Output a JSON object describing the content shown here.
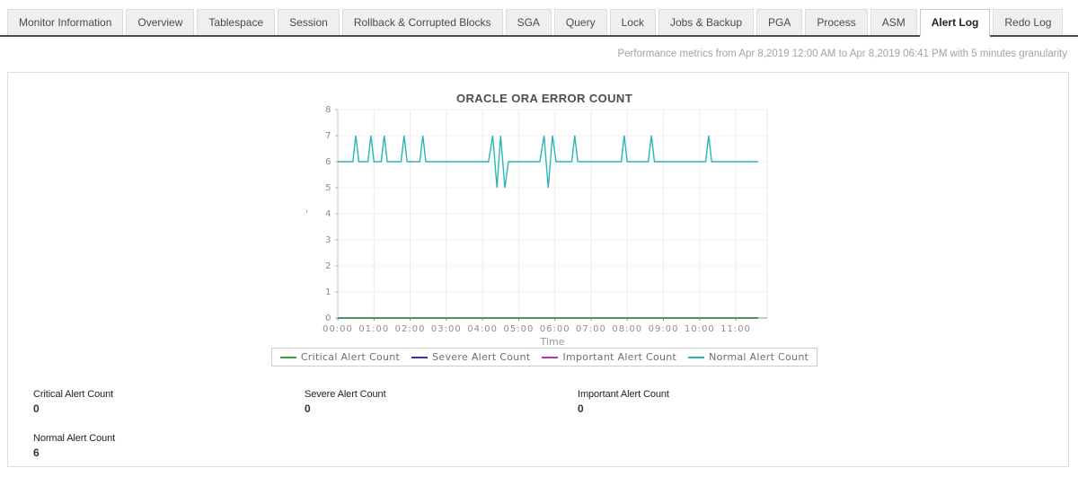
{
  "tabs": {
    "active": "Alert Log",
    "items": [
      {
        "label": "Monitor Information"
      },
      {
        "label": "Overview"
      },
      {
        "label": "Tablespace"
      },
      {
        "label": "Session"
      },
      {
        "label": "Rollback & Corrupted Blocks"
      },
      {
        "label": "SGA"
      },
      {
        "label": "Query"
      },
      {
        "label": "Lock"
      },
      {
        "label": "Jobs & Backup"
      },
      {
        "label": "PGA"
      },
      {
        "label": "Process"
      },
      {
        "label": "ASM"
      },
      {
        "label": "Alert Log"
      },
      {
        "label": "Redo Log"
      }
    ]
  },
  "header": {
    "performance_note": "Performance metrics from Apr 8,2019 12:00 AM to Apr 8,2019 06:41 PM with 5 minutes granularity"
  },
  "chart_data": {
    "type": "line",
    "title": "ORACLE ORA ERROR COUNT",
    "xlabel": "Time",
    "ylabel": "'",
    "ylim": [
      0,
      8
    ],
    "y_ticks": [
      0,
      1,
      2,
      3,
      4,
      5,
      6,
      7,
      8
    ],
    "xlim_minutes": [
      0,
      712
    ],
    "x_ticks": [
      {
        "minutes": 0,
        "label": "00:00"
      },
      {
        "minutes": 60,
        "label": "01:00"
      },
      {
        "minutes": 120,
        "label": "02:00"
      },
      {
        "minutes": 180,
        "label": "03:00"
      },
      {
        "minutes": 240,
        "label": "04:00"
      },
      {
        "minutes": 300,
        "label": "05:00"
      },
      {
        "minutes": 360,
        "label": "06:00"
      },
      {
        "minutes": 420,
        "label": "07:00"
      },
      {
        "minutes": 480,
        "label": "08:00"
      },
      {
        "minutes": 540,
        "label": "09:00"
      },
      {
        "minutes": 600,
        "label": "10:00"
      },
      {
        "minutes": 660,
        "label": "11:00"
      }
    ],
    "granularity": "5 minutes",
    "legend_position": "bottom",
    "draw_order": [
      1,
      2,
      0,
      3
    ],
    "series": [
      {
        "name": "Critical Alert Count",
        "color": "#3c9e44",
        "points": [
          [
            0,
            0
          ],
          [
            697,
            0
          ]
        ]
      },
      {
        "name": "Severe Alert Count",
        "color": "#3434a4",
        "points": [
          [
            0,
            0
          ],
          [
            697,
            0
          ]
        ]
      },
      {
        "name": "Important Alert Count",
        "color": "#b136b1",
        "points": [
          [
            0,
            0
          ],
          [
            697,
            0
          ]
        ]
      },
      {
        "name": "Normal Alert Count",
        "color": "#2ab7b2",
        "points": [
          [
            0,
            6
          ],
          [
            25,
            6
          ],
          [
            30,
            7
          ],
          [
            35,
            6
          ],
          [
            50,
            6
          ],
          [
            55,
            7
          ],
          [
            60,
            6
          ],
          [
            72,
            6
          ],
          [
            77,
            7
          ],
          [
            82,
            6
          ],
          [
            105,
            6
          ],
          [
            110,
            7
          ],
          [
            115,
            6
          ],
          [
            136,
            6
          ],
          [
            141,
            7
          ],
          [
            146,
            6
          ],
          [
            250,
            6
          ],
          [
            257,
            7
          ],
          [
            264,
            5
          ],
          [
            270,
            7
          ],
          [
            277,
            5
          ],
          [
            283,
            6
          ],
          [
            335,
            6
          ],
          [
            342,
            7
          ],
          [
            349,
            5
          ],
          [
            356,
            7
          ],
          [
            362,
            6
          ],
          [
            388,
            6
          ],
          [
            393,
            7
          ],
          [
            398,
            6
          ],
          [
            470,
            6
          ],
          [
            475,
            7
          ],
          [
            480,
            6
          ],
          [
            515,
            6
          ],
          [
            520,
            7
          ],
          [
            525,
            6
          ],
          [
            610,
            6
          ],
          [
            615,
            7
          ],
          [
            620,
            6
          ],
          [
            697,
            6
          ]
        ]
      }
    ]
  },
  "stats": {
    "critical": {
      "label": "Critical Alert Count",
      "value": "0"
    },
    "severe": {
      "label": "Severe Alert Count",
      "value": "0"
    },
    "important": {
      "label": "Important Alert Count",
      "value": "0"
    },
    "normal": {
      "label": "Normal Alert Count",
      "value": "6"
    }
  }
}
